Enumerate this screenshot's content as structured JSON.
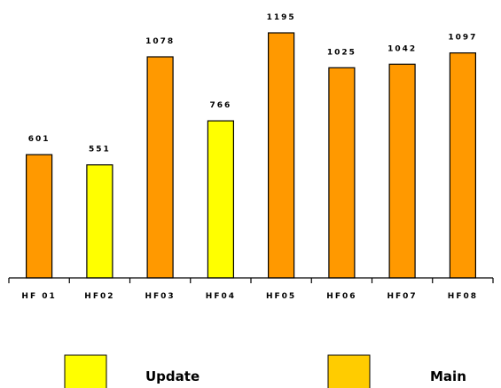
{
  "chart_data": {
    "type": "bar",
    "categories": [
      "HF 01",
      "HF02",
      "HF03",
      "HF04",
      "HF05",
      "HF06",
      "HF07",
      "HF08"
    ],
    "values": [
      601,
      551,
      1078,
      766,
      1195,
      1025,
      1042,
      1097
    ],
    "value_labels": [
      "601",
      "551",
      "1078",
      "766",
      "1195",
      "1025",
      "1042",
      "1097"
    ],
    "bar_series": [
      "Main",
      "Update",
      "Main",
      "Update",
      "Main",
      "Main",
      "Main",
      "Main"
    ],
    "ylim": [
      0,
      1195
    ],
    "grid": false,
    "legend_placement": "bottom",
    "title": "",
    "xlabel": "",
    "ylabel": "",
    "series": [
      {
        "name": "Update",
        "color": "#ffff00"
      },
      {
        "name": "Main",
        "color": "#ff9900",
        "legend_color": "#ffcc00"
      }
    ]
  }
}
